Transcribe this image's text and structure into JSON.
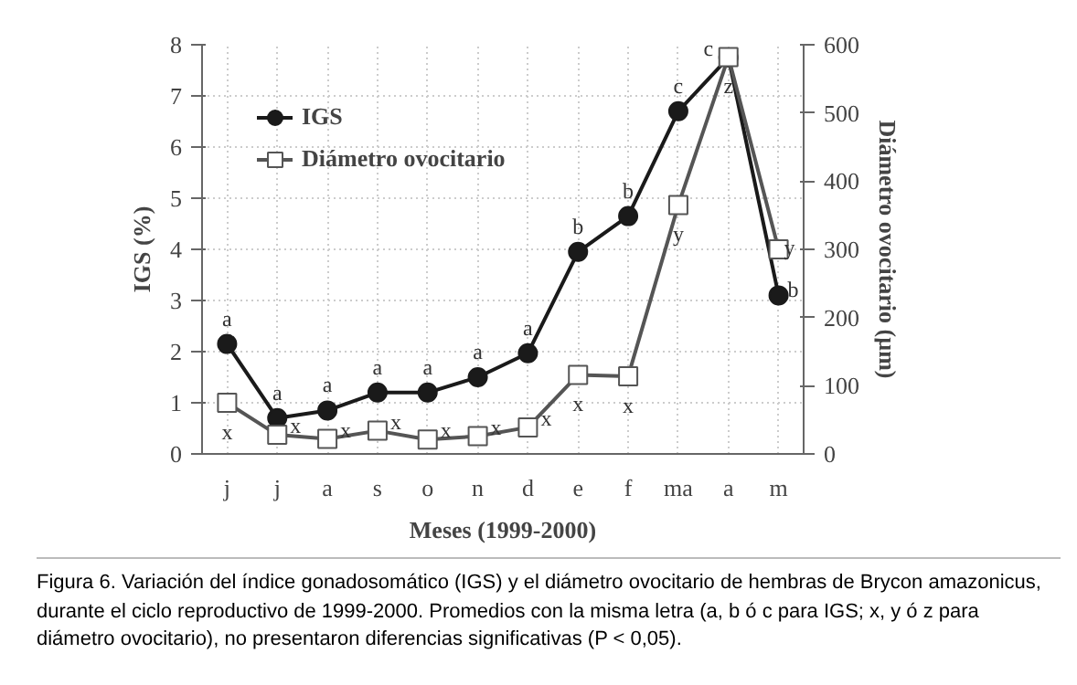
{
  "chart_data": {
    "type": "line",
    "categories": [
      "j",
      "j",
      "a",
      "s",
      "o",
      "n",
      "d",
      "e",
      "f",
      "ma",
      "a",
      "m"
    ],
    "xlabel": "Meses (1999-2000)",
    "ylabel": "IGS (%)",
    "y2label": "Diámetro ovocitario (µm)",
    "ylim": [
      0,
      8
    ],
    "yticks": [
      0,
      1,
      2,
      3,
      4,
      5,
      6,
      7,
      8
    ],
    "y2lim": [
      0,
      600
    ],
    "y2ticks": [
      0,
      100,
      200,
      300,
      400,
      500,
      600
    ],
    "grid": true,
    "legend": "top left",
    "line_style": "solid",
    "series": [
      {
        "name": "IGS",
        "color": "#1a1a1a",
        "marker": "circle",
        "values": [
          2.15,
          0.7,
          0.85,
          1.2,
          1.2,
          1.5,
          1.97,
          3.95,
          4.65,
          6.7,
          7.75,
          3.1
        ],
        "value_labels": [
          "a",
          "a",
          "a",
          "a",
          "a",
          "a",
          "a",
          "b",
          "b",
          "c",
          "c",
          "b"
        ]
      },
      {
        "name": "Diámetro ovocitario",
        "color": "#555555",
        "marker": "square",
        "axis": "y2",
        "values": [
          75,
          28,
          22,
          34,
          21,
          26,
          39,
          116,
          114,
          365,
          582,
          300
        ],
        "value_labels": [
          "x",
          "x",
          "x",
          "x",
          "x",
          "x",
          "x",
          "x",
          "x",
          "y",
          "z",
          "y"
        ]
      }
    ],
    "annotations": [
      "Figura 6. Variación del índice gonadosomático (IGS) y el diámetro ovocitario de hembras de Brycon amazonicus, durante el ciclo reproductivo de 1999-2000. Promedios con la misma letra (a, b ó c para IGS; x, y ó z para diámetro ovocitario), no presentaron diferencias significativas (P < 0,05)."
    ]
  }
}
